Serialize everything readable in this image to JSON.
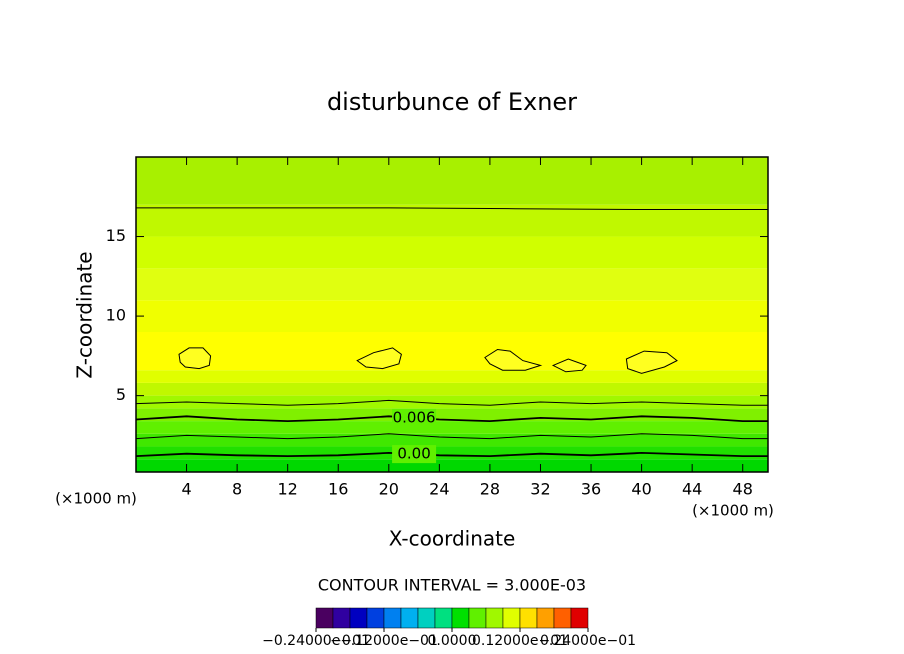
{
  "chart_data": {
    "type": "contour",
    "title": "disturbunce of Exner",
    "x_label": "X-coordinate",
    "y_label": "Z-coordinate",
    "x_unit": "(×1000 m)",
    "y_unit": "(×1000 m)",
    "note": "CONTOUR INTERVAL = 3.000E-03",
    "xlim": [
      0,
      50
    ],
    "ylim": [
      0.2,
      20
    ],
    "xticks": [
      4,
      8,
      12,
      16,
      20,
      24,
      28,
      32,
      36,
      40,
      44,
      48
    ],
    "yticks": [
      5,
      10,
      15
    ],
    "band_edges": [
      0.2,
      1,
      1.8,
      2.6,
      3.4,
      4.2,
      5,
      5.8,
      6.6,
      9,
      11,
      13,
      15,
      17,
      20
    ],
    "band_colors": [
      "#00d800",
      "#20e000",
      "#40e800",
      "#60f000",
      "#80f000",
      "#a0f800",
      "#c0f800",
      "#e0ff00",
      "#ffff00",
      "#f0ff00",
      "#e0ff10",
      "#d0ff00",
      "#c0f800",
      "#a8f000"
    ],
    "contours": [
      {
        "x": [
          0,
          10,
          20,
          30,
          40,
          50
        ],
        "y": [
          16.8,
          16.8,
          16.8,
          16.75,
          16.7,
          16.7
        ]
      },
      {
        "x": [
          0,
          4,
          8,
          12,
          16,
          20,
          24,
          28,
          32,
          36,
          40,
          44,
          48,
          50
        ],
        "y": [
          4.5,
          4.6,
          4.5,
          4.4,
          4.5,
          4.7,
          4.5,
          4.4,
          4.6,
          4.5,
          4.6,
          4.5,
          4.4,
          4.4
        ]
      },
      {
        "x": [
          0,
          4,
          8,
          12,
          16,
          20,
          24,
          28,
          32,
          36,
          40,
          44,
          48,
          50
        ],
        "y": [
          3.5,
          3.7,
          3.5,
          3.4,
          3.5,
          3.7,
          3.5,
          3.4,
          3.6,
          3.5,
          3.7,
          3.6,
          3.4,
          3.4
        ],
        "level": 0.006
      },
      {
        "x": [
          0,
          4,
          8,
          12,
          16,
          20,
          24,
          28,
          32,
          36,
          40,
          44,
          48,
          50
        ],
        "y": [
          2.3,
          2.5,
          2.4,
          2.3,
          2.4,
          2.6,
          2.4,
          2.3,
          2.5,
          2.4,
          2.6,
          2.5,
          2.3,
          2.3
        ]
      },
      {
        "x": [
          0,
          4,
          8,
          12,
          16,
          20,
          24,
          28,
          32,
          36,
          40,
          44,
          48,
          50
        ],
        "y": [
          1.2,
          1.35,
          1.25,
          1.2,
          1.25,
          1.4,
          1.25,
          1.2,
          1.35,
          1.25,
          1.4,
          1.3,
          1.2,
          1.2
        ],
        "level": {
          "value": 0,
          "label": "0.00"
        }
      },
      {
        "x": [
          3.4,
          4.2,
          5.3,
          5.9,
          5.8,
          5.0,
          3.9,
          3.5,
          3.4
        ],
        "y": [
          7.6,
          8.0,
          8.0,
          7.5,
          6.9,
          6.7,
          6.8,
          7.1,
          7.6
        ]
      },
      {
        "x": [
          17.5,
          18.8,
          20.3,
          21.0,
          20.8,
          19.5,
          18.2,
          17.5
        ],
        "y": [
          7.2,
          7.7,
          8.0,
          7.6,
          7.0,
          6.7,
          6.8,
          7.2
        ]
      },
      {
        "x": [
          27.6,
          28.6,
          29.6,
          30.6,
          32.0,
          30.8,
          29.0,
          28.0,
          27.6
        ],
        "y": [
          7.4,
          7.9,
          7.8,
          7.2,
          6.9,
          6.6,
          6.6,
          7.0,
          7.4
        ]
      },
      {
        "x": [
          33.0,
          34.2,
          35.6,
          35.3,
          34.0,
          33.0
        ],
        "y": [
          6.9,
          7.3,
          6.9,
          6.6,
          6.5,
          6.9
        ]
      },
      {
        "x": [
          38.8,
          40.2,
          42.0,
          42.8,
          41.8,
          40.0,
          38.9,
          38.8
        ],
        "y": [
          7.3,
          7.8,
          7.7,
          7.2,
          6.8,
          6.4,
          6.7,
          7.3
        ]
      }
    ],
    "colorbar": {
      "lim": [
        -0.024,
        0.024
      ],
      "ticks": [
        {
          "value": -0.024,
          "label": "−0.24000e−01"
        },
        {
          "value": -0.012,
          "label": "−0.12000e−01"
        },
        {
          "value": 0,
          "label": "0.0000"
        },
        {
          "value": 0.012,
          "label": "0.12000e−01"
        },
        {
          "value": 0.024,
          "label": "0.24000e−01"
        }
      ],
      "colors": [
        "#4a0060",
        "#3000a0",
        "#0000c0",
        "#0040e0",
        "#0080f0",
        "#00b0f0",
        "#00d0c0",
        "#00e080",
        "#00e000",
        "#60f000",
        "#a0f800",
        "#e0ff00",
        "#ffe000",
        "#ffa000",
        "#ff6000",
        "#e00000"
      ]
    }
  }
}
